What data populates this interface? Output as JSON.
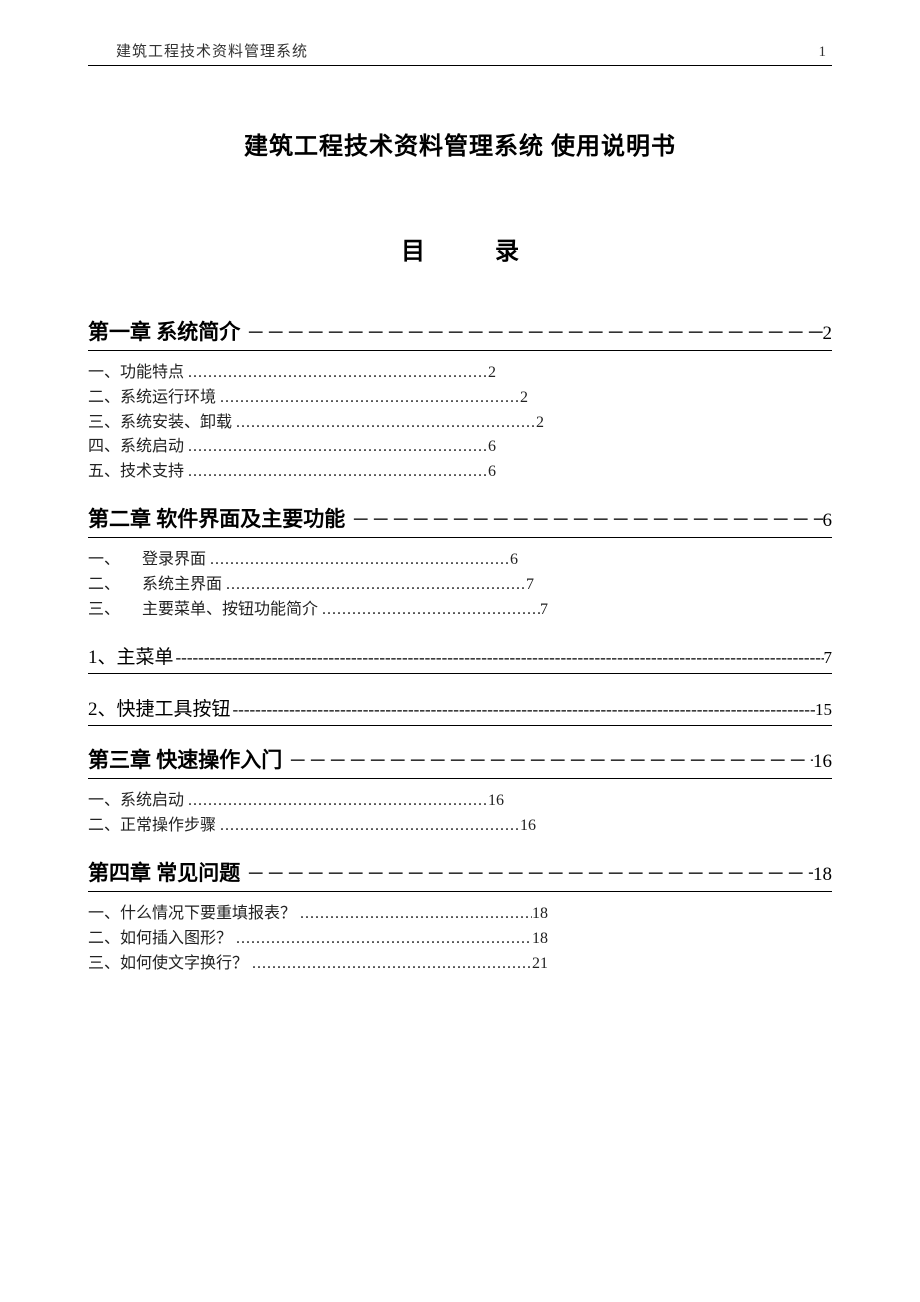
{
  "header": {
    "title": "建筑工程技术资料管理系统",
    "page_number": "1"
  },
  "doc_title": "建筑工程技术资料管理系统  使用说明书",
  "toc_heading": {
    "left": "目",
    "right": "录"
  },
  "leaders": {
    "chapter_dash": "－－－－－－－－－－－－－－－－－－－－－－－－－－－－－－－－－－－－－－－－－－－－－－",
    "section_dash": "------------------------------------------------------------------------------------------------------------------------",
    "sub_dot": "............................................................"
  },
  "chapters": [
    {
      "label": "第一章  系统简介",
      "page": "2",
      "items": [
        {
          "prefix": "一、",
          "text": "功能特点",
          "page": "2",
          "indent": 1
        },
        {
          "prefix": "二、",
          "text": "系统运行环境",
          "page": "2",
          "indent": 1
        },
        {
          "prefix": "三、",
          "text": "系统安装、卸载",
          "page": "2",
          "indent": 1
        },
        {
          "prefix": "四、",
          "text": "系统启动",
          "page": "6",
          "indent": 1
        },
        {
          "prefix": "五、",
          "text": "技术支持",
          "page": "6",
          "indent": 1
        }
      ]
    },
    {
      "label": "第二章  软件界面及主要功能",
      "page": "6",
      "items": [
        {
          "prefix": "一、",
          "text": "登录界面",
          "page": "6",
          "indent": 2
        },
        {
          "prefix": "二、",
          "text": "系统主界面",
          "page": "7",
          "indent": 2
        },
        {
          "prefix": "三、",
          "text": "主要菜单、按钮功能简介",
          "page": "7",
          "indent": 2
        }
      ],
      "sections": [
        {
          "label": "1、主菜单",
          "page": "7"
        },
        {
          "label": "2、快捷工具按钮",
          "page": "15"
        }
      ]
    },
    {
      "label": "第三章  快速操作入门",
      "page": "16",
      "items": [
        {
          "prefix": "一、",
          "text": "系统启动",
          "page": "16",
          "indent": 1
        },
        {
          "prefix": "二、",
          "text": "正常操作步骤",
          "page": "16",
          "indent": 1
        }
      ]
    },
    {
      "label": "第四章  常见问题",
      "page": "18",
      "items": [
        {
          "prefix": "一、",
          "text": "什么情况下要重填报表？",
          "page": "18",
          "indent": 1
        },
        {
          "prefix": "二、",
          "text": "如何插入图形？",
          "page": "18",
          "indent": 1
        },
        {
          "prefix": "三、",
          "text": "如何使文字换行？",
          "page": "21",
          "indent": 1
        }
      ]
    }
  ]
}
